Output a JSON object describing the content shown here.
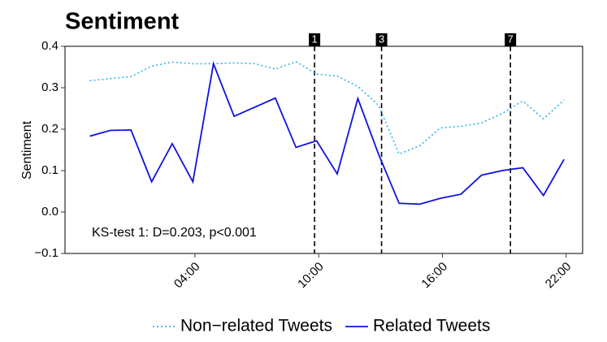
{
  "chart_data": {
    "type": "line",
    "title": "Sentiment",
    "y_label": "Sentiment",
    "x": [
      -1.1,
      -0.1,
      0.9,
      1.9,
      2.9,
      3.9,
      4.9,
      5.9,
      6.9,
      7.9,
      8.9,
      9.9,
      10.9,
      11.9,
      12.9,
      13.9,
      14.9,
      15.9,
      16.9,
      17.9,
      18.9,
      19.9,
      20.9,
      21.9
    ],
    "series": [
      {
        "name": "Non−related Tweets",
        "color": "#2bb5e8",
        "dash": "dotted",
        "values": [
          0.317,
          0.322,
          0.327,
          0.352,
          0.362,
          0.358,
          0.358,
          0.36,
          0.358,
          0.345,
          0.363,
          0.333,
          0.328,
          0.303,
          0.258,
          0.14,
          0.16,
          0.203,
          0.207,
          0.215,
          0.238,
          0.268,
          0.225,
          0.27
        ]
      },
      {
        "name": "Related Tweets",
        "color": "#1010e0",
        "dash": "solid",
        "values": [
          0.183,
          0.197,
          0.198,
          0.073,
          0.165,
          0.073,
          0.358,
          0.231,
          0.253,
          0.275,
          0.156,
          0.172,
          0.092,
          0.274,
          0.14,
          0.021,
          0.019,
          0.033,
          0.043,
          0.089,
          0.1,
          0.107,
          0.04,
          0.127
        ]
      }
    ],
    "xlim": [
      -2.3,
      22.8
    ],
    "xticks": [
      {
        "value": 4,
        "label": "04:00"
      },
      {
        "value": 10,
        "label": "10:00"
      },
      {
        "value": 16,
        "label": "16:00"
      },
      {
        "value": 22,
        "label": "22:00"
      }
    ],
    "ylim": [
      -0.1,
      0.4
    ],
    "yticks": [
      {
        "value": -0.1,
        "label": "−0.1"
      },
      {
        "value": 0,
        "label": "0.0"
      },
      0.1,
      0.2,
      0.3,
      0.4
    ],
    "vlines": [
      {
        "x": 9.8,
        "label": "1"
      },
      {
        "x": 13.05,
        "label": "3"
      },
      {
        "x": 19.3,
        "label": "7"
      }
    ],
    "annotation": "KS-test 1: D=0.203, p<0.001",
    "legend": "bottom"
  }
}
